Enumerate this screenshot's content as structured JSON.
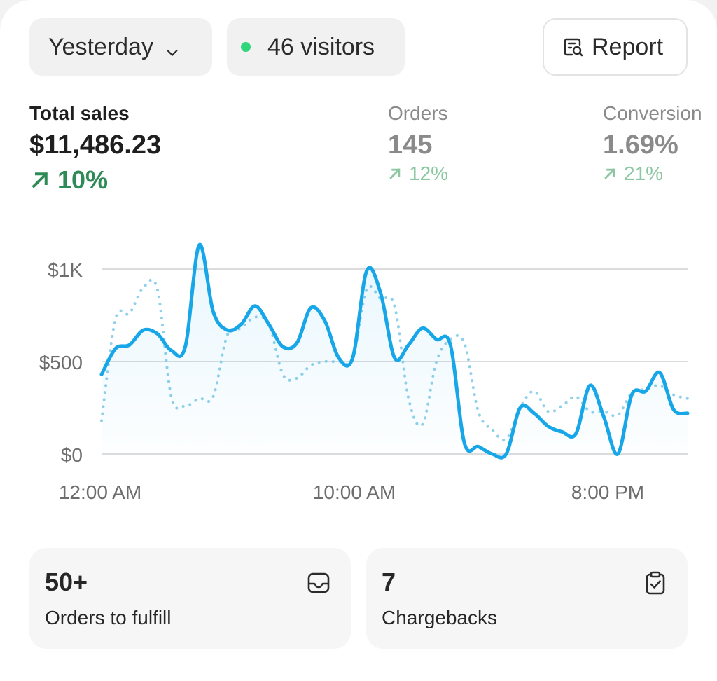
{
  "toolbar": {
    "date_label": "Yesterday",
    "visitors_label": "46 visitors",
    "report_label": "Report",
    "accent_color": "#2fd67b"
  },
  "metrics": {
    "total_sales": {
      "label": "Total sales",
      "value": "$11,486.23",
      "delta": "10%"
    },
    "orders": {
      "label": "Orders",
      "value": "145",
      "delta": "12%"
    },
    "conversion": {
      "label": "Conversion",
      "value": "1.69%",
      "delta": "21%"
    }
  },
  "chart_data": {
    "type": "line",
    "y_ticks": [
      "$1K",
      "$500",
      "$0"
    ],
    "x_ticks": [
      "12:00 AM",
      "10:00 AM",
      "8:00 PM"
    ],
    "ylim": [
      0,
      1000
    ],
    "grid": true,
    "series": [
      {
        "style": "solid",
        "color": "#17a7e8",
        "values": [
          430,
          570,
          590,
          670,
          650,
          560,
          580,
          1130,
          770,
          670,
          700,
          800,
          700,
          580,
          600,
          790,
          720,
          520,
          520,
          990,
          870,
          520,
          590,
          680,
          620,
          590,
          60,
          40,
          0,
          0,
          250,
          220,
          150,
          120,
          110,
          370,
          200,
          0,
          320,
          340,
          440,
          240,
          220
        ]
      },
      {
        "style": "dotted",
        "color": "#8fd0ea",
        "values": [
          180,
          730,
          760,
          900,
          890,
          310,
          260,
          300,
          310,
          640,
          680,
          740,
          700,
          430,
          410,
          480,
          500,
          500,
          520,
          890,
          840,
          800,
          300,
          160,
          500,
          620,
          600,
          230,
          130,
          80,
          250,
          340,
          230,
          260,
          310,
          230,
          230,
          210,
          330,
          350,
          370,
          320,
          300
        ]
      }
    ]
  },
  "tiles": {
    "fulfill": {
      "value": "50+",
      "caption": "Orders to fulfill"
    },
    "chargebacks": {
      "value": "7",
      "caption": "Chargebacks"
    }
  }
}
